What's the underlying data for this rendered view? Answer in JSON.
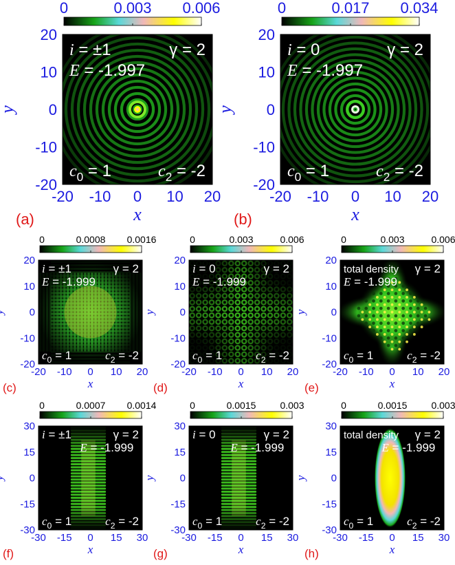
{
  "panels": [
    {
      "id": "a",
      "label": "(a)",
      "kind": "rings",
      "centerDot": true,
      "colorbar": {
        "ticks": [
          "0",
          "0.003",
          "0.006"
        ]
      },
      "ticks_x": [
        "-20",
        "-10",
        "0",
        "10",
        "20"
      ],
      "ticks_y": [
        "20",
        "10",
        "0",
        "-10",
        "-20"
      ],
      "xlabel": "x",
      "ylabel": "y",
      "state": "i = ±1",
      "energy": "E = -1.997",
      "gamma": "γ = 2",
      "c0": "c0 = 1",
      "c2": "c2 = -2"
    },
    {
      "id": "b",
      "label": "(b)",
      "kind": "rings",
      "centerDot": false,
      "colorbar": {
        "ticks": [
          "0",
          "0.017",
          "0.034"
        ]
      },
      "ticks_x": [
        "-20",
        "-10",
        "0",
        "10",
        "20"
      ],
      "ticks_y": [
        "20",
        "10",
        "0",
        "-10",
        "-20"
      ],
      "xlabel": "x",
      "ylabel": "y",
      "state": "i = 0",
      "energy": "E = -1.997",
      "gamma": "γ = 2",
      "c0": "c0 = 1",
      "c2": "c2 = -2"
    },
    {
      "id": "c",
      "label": "(c)",
      "kind": "stripesV",
      "colorbar": {
        "ticks": [
          "0",
          "0.0008",
          "0.0016"
        ]
      },
      "ticks_x": [
        "-20",
        "-10",
        "0",
        "10",
        "20"
      ],
      "ticks_y": [
        "20",
        "10",
        "0",
        "-10",
        "-20"
      ],
      "xlabel": "x",
      "ylabel": "y",
      "state": "i = ±1",
      "energy": "E = -1.999",
      "gamma": "γ = 2",
      "c0": "c0 = 1",
      "c2": "c2 = -2"
    },
    {
      "id": "d",
      "label": "(d)",
      "kind": "checker",
      "colorbar": {
        "ticks": [
          "0",
          "0.003",
          "0.006"
        ]
      },
      "ticks_x": [
        "-20",
        "-10",
        "0",
        "10",
        "20"
      ],
      "ticks_y": [
        "20",
        "10",
        "0",
        "-10",
        "-20"
      ],
      "xlabel": "x",
      "ylabel": "y",
      "state": "i = 0",
      "energy": "E = -1.999",
      "gamma": "γ = 2",
      "c0": "c0 = 1",
      "c2": "c2 = -2"
    },
    {
      "id": "e",
      "label": "(e)",
      "kind": "total2d",
      "colorbar": {
        "ticks": [
          "0",
          "0.003",
          "0.006"
        ]
      },
      "ticks_x": [
        "-20",
        "-10",
        "0",
        "10",
        "20"
      ],
      "ticks_y": [
        "20",
        "10",
        "0",
        "-10",
        "-20"
      ],
      "xlabel": "x",
      "ylabel": "y",
      "state": "total density",
      "energy": "E = -1.999",
      "gamma": "γ = 2",
      "c0": "c0 = 1",
      "c2": "c2 = -2"
    },
    {
      "id": "f",
      "label": "(f)",
      "kind": "column",
      "colorbar": {
        "ticks": [
          "0",
          "0.0007",
          "0.0014"
        ]
      },
      "ticks_x": [
        "-30",
        "-15",
        "0",
        "15",
        "30"
      ],
      "ticks_y": [
        "30",
        "15",
        "0",
        "-15",
        "-30"
      ],
      "xlabel": "x",
      "ylabel": "y",
      "state": "i = ±1",
      "energy": "E = -1.999",
      "gamma": "γ = 2",
      "c0": "c0 = 1",
      "c2": "c2 = -2"
    },
    {
      "id": "g",
      "label": "(g)",
      "kind": "column",
      "colorbar": {
        "ticks": [
          "0",
          "0.0015",
          "0.003"
        ]
      },
      "ticks_x": [
        "-30",
        "-15",
        "0",
        "15",
        "30"
      ],
      "ticks_y": [
        "30",
        "15",
        "0",
        "-15",
        "-30"
      ],
      "xlabel": "x",
      "ylabel": "y",
      "state": "i = 0",
      "energy": "E = -1.999",
      "gamma": "γ = 2",
      "c0": "c0 = 1",
      "c2": "c2 = -2"
    },
    {
      "id": "h",
      "label": "(h)",
      "kind": "ellipse",
      "colorbar": {
        "ticks": [
          "0",
          "0.0015",
          "0.003"
        ]
      },
      "ticks_x": [
        "-30",
        "-15",
        "0",
        "15",
        "30"
      ],
      "ticks_y": [
        "30",
        "15",
        "0",
        "-15",
        "-30"
      ],
      "xlabel": "x",
      "ylabel": "y",
      "state": "total density",
      "energy": "E = -1.999",
      "gamma": "γ = 2",
      "c0": "c0 = 1",
      "c2": "c2 = -2"
    }
  ],
  "colors": {
    "tick": "#1a1adf",
    "label": "#e01818",
    "annotation": "#ffffff",
    "energy_e": "#ffff00",
    "energy_fgh": "#ff2a2a"
  }
}
